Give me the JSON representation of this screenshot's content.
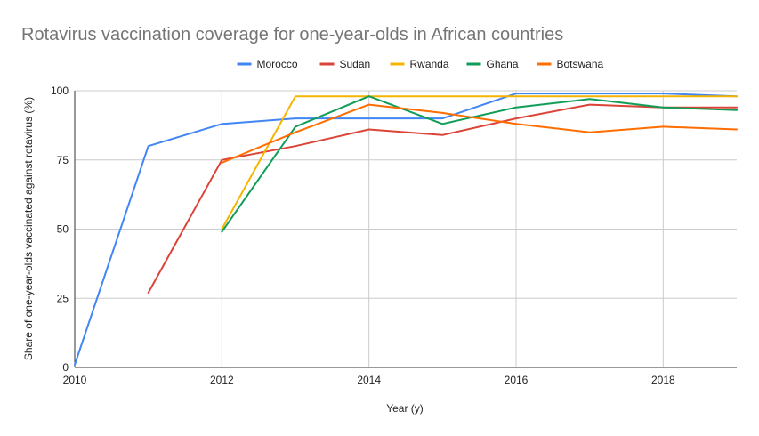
{
  "chart_data": {
    "type": "line",
    "title": "Rotavirus vaccination coverage for one-year-olds in African countries",
    "xlabel": "Year (y)",
    "ylabel": "Share of one-year-olds vaccinated against rotavirus (%)",
    "xlim": [
      2010,
      2019
    ],
    "ylim": [
      0,
      100
    ],
    "xticks": [
      2010,
      2012,
      2014,
      2016,
      2018
    ],
    "yticks": [
      0,
      25,
      50,
      75,
      100
    ],
    "grid": true,
    "legend_position": "top",
    "series": [
      {
        "name": "Morocco",
        "color": "#4285f4",
        "x": [
          2010,
          2011,
          2012,
          2013,
          2014,
          2015,
          2016,
          2017,
          2018,
          2019
        ],
        "y": [
          1,
          80,
          88,
          90,
          90,
          90,
          99,
          99,
          99,
          98
        ]
      },
      {
        "name": "Sudan",
        "color": "#db4437",
        "x": [
          2011,
          2012,
          2013,
          2014,
          2015,
          2016,
          2017,
          2018,
          2019
        ],
        "y": [
          27,
          75,
          80,
          86,
          84,
          90,
          95,
          94,
          94
        ]
      },
      {
        "name": "Rwanda",
        "color": "#f4b400",
        "x": [
          2012,
          2013,
          2014,
          2015,
          2016,
          2017,
          2018,
          2019
        ],
        "y": [
          50,
          98,
          98,
          98,
          98,
          98,
          98,
          98
        ]
      },
      {
        "name": "Ghana",
        "color": "#0f9d58",
        "x": [
          2012,
          2013,
          2014,
          2015,
          2016,
          2017,
          2018,
          2019
        ],
        "y": [
          49,
          87,
          98,
          88,
          94,
          97,
          94,
          93
        ]
      },
      {
        "name": "Botswana",
        "color": "#ff6d01",
        "x": [
          2012,
          2013,
          2014,
          2015,
          2016,
          2017,
          2018,
          2019
        ],
        "y": [
          74,
          85,
          95,
          92,
          88,
          85,
          87,
          86
        ]
      }
    ]
  }
}
